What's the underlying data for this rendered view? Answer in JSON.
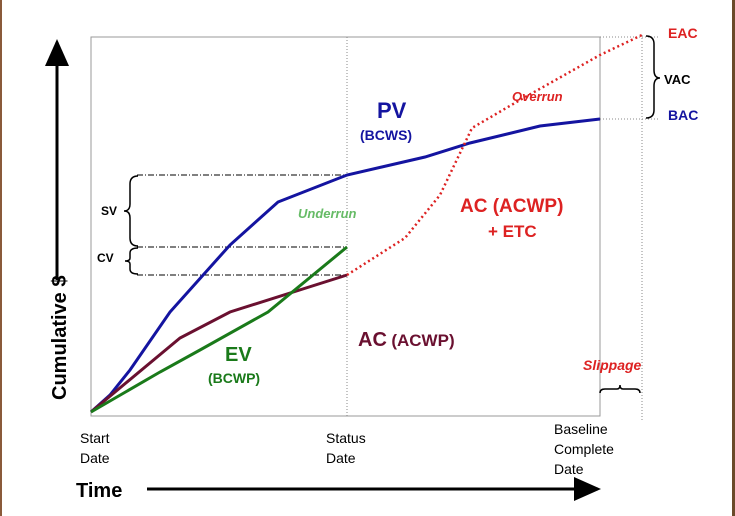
{
  "axes": {
    "y_label": "Cumulative $",
    "x_label": "Time"
  },
  "x_markers": {
    "start": [
      "Start",
      "Date"
    ],
    "status": [
      "Status",
      "Date"
    ],
    "baseline": [
      "Baseline",
      "Complete",
      "Date"
    ]
  },
  "curves": {
    "pv": {
      "label": "PV",
      "sub": "(BCWS)",
      "color": "#1414a0"
    },
    "ev": {
      "label": "EV",
      "sub": "(BCWP)",
      "color": "#1a7a1a"
    },
    "ac": {
      "label": "AC",
      "sub": "(ACWP)",
      "color": "#6a1030"
    },
    "ac_etc": {
      "label": "AC (ACWP)",
      "sub": "+ ETC",
      "color": "#dd2222"
    }
  },
  "annotations": {
    "overrun": "Overrun",
    "underrun": "Underrun",
    "slippage": "Slippage",
    "sv": "SV",
    "cv": "CV",
    "vac": "VAC",
    "eac": "EAC",
    "bac": "BAC"
  },
  "colors": {
    "underrun": "#66bb66",
    "red": "#dd2222",
    "blue": "#1414a0"
  }
}
